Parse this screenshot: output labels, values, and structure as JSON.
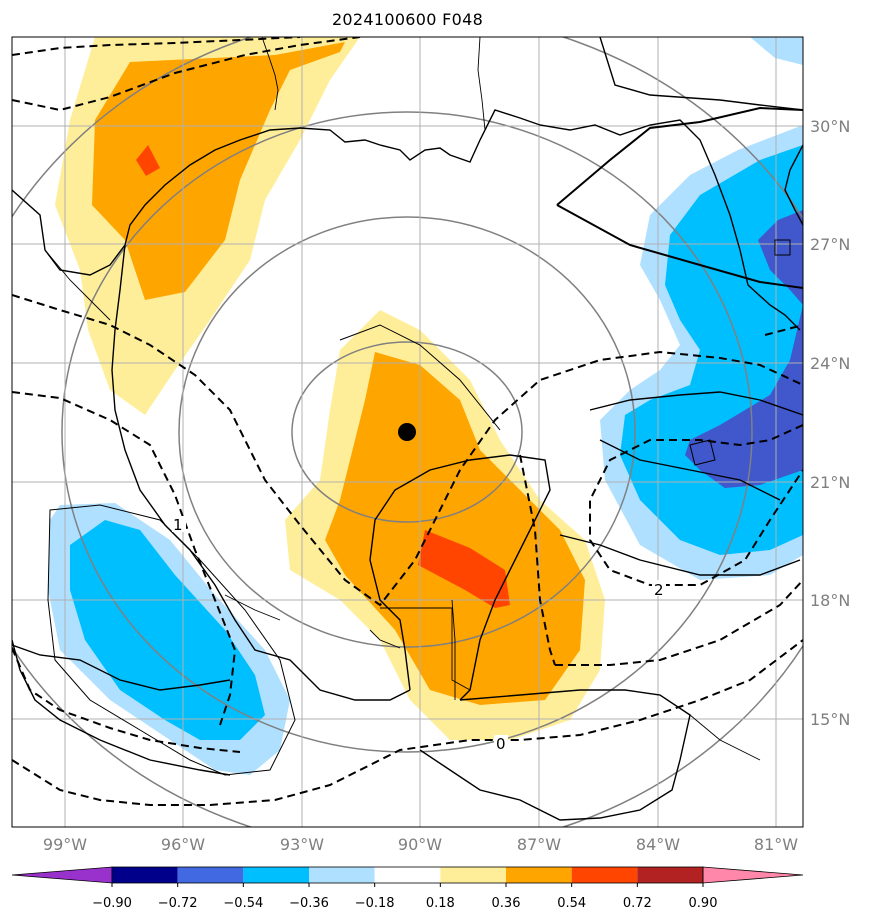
{
  "title": "2024100600 F048",
  "map": {
    "lat_labels": [
      "30°N",
      "27°N",
      "24°N",
      "21°N",
      "18°N",
      "15°N"
    ],
    "lon_labels": [
      "99°W",
      "96°W",
      "93°W",
      "90°W",
      "87°W",
      "84°W",
      "81°W"
    ],
    "contour_labels": [
      "1",
      "2",
      "0"
    ],
    "storm_center": {
      "lat": 22.3,
      "lon": -90.3
    },
    "shading_colors": {
      "pale_yellow": "#ffee99",
      "orange": "#ffa500",
      "red_orange": "#ff4500",
      "light_blue": "#b0e0ff",
      "sky_blue": "#00bfff",
      "royal_blue": "#4058cc"
    }
  },
  "colorbar": {
    "ticks": [
      "−0.90",
      "−0.72",
      "−0.54",
      "−0.36",
      "−0.18",
      "0.18",
      "0.36",
      "0.54",
      "0.72",
      "0.90"
    ],
    "colors": [
      "#9932cc",
      "#00008b",
      "#4169e1",
      "#00bfff",
      "#b0e0ff",
      "#ffffff",
      "#ffee99",
      "#ffa500",
      "#ff4500",
      "#b22222",
      "#ff88aa"
    ]
  }
}
